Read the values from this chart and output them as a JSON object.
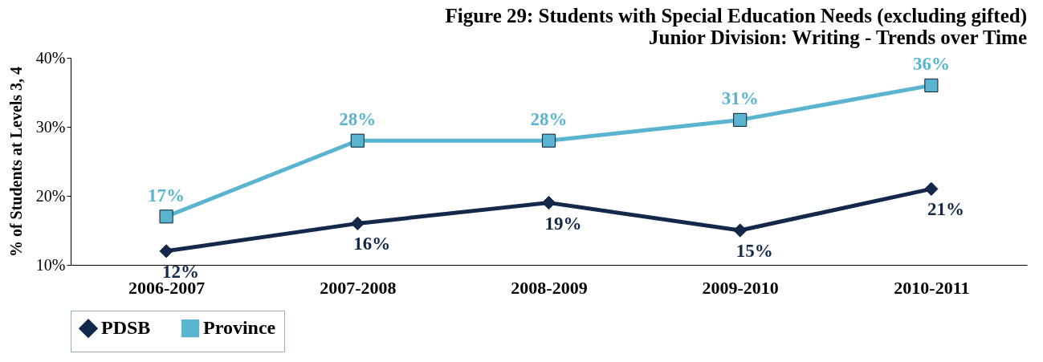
{
  "chart_data": {
    "type": "line",
    "title": [
      "Figure 29:  Students with Special Education Needs (excluding gifted)",
      "Junior Division: Writing - Trends over Time"
    ],
    "ylabel": "% of Students at Levels 3, 4",
    "categories": [
      "2006-2007",
      "2007-2008",
      "2008-2009",
      "2009-2010",
      "2010-2011"
    ],
    "series": [
      {
        "name": "PDSB",
        "color": "#14284b",
        "marker": "diamond",
        "values": [
          12,
          16,
          19,
          15,
          21
        ],
        "value_labels": [
          "12%",
          "16%",
          "19%",
          "15%",
          "21%"
        ]
      },
      {
        "name": "Province",
        "color": "#5ab4d0",
        "marker": "square",
        "values": [
          17,
          28,
          28,
          31,
          36
        ],
        "value_labels": [
          "17%",
          "28%",
          "28%",
          "31%",
          "36%"
        ]
      }
    ],
    "ylim": [
      10,
      40
    ],
    "yticks": [
      {
        "value": 10,
        "label": "10%"
      },
      {
        "value": 20,
        "label": "20%"
      },
      {
        "value": 30,
        "label": "30%"
      },
      {
        "value": 40,
        "label": "40%"
      }
    ],
    "grid": false,
    "legend": "bottom"
  }
}
